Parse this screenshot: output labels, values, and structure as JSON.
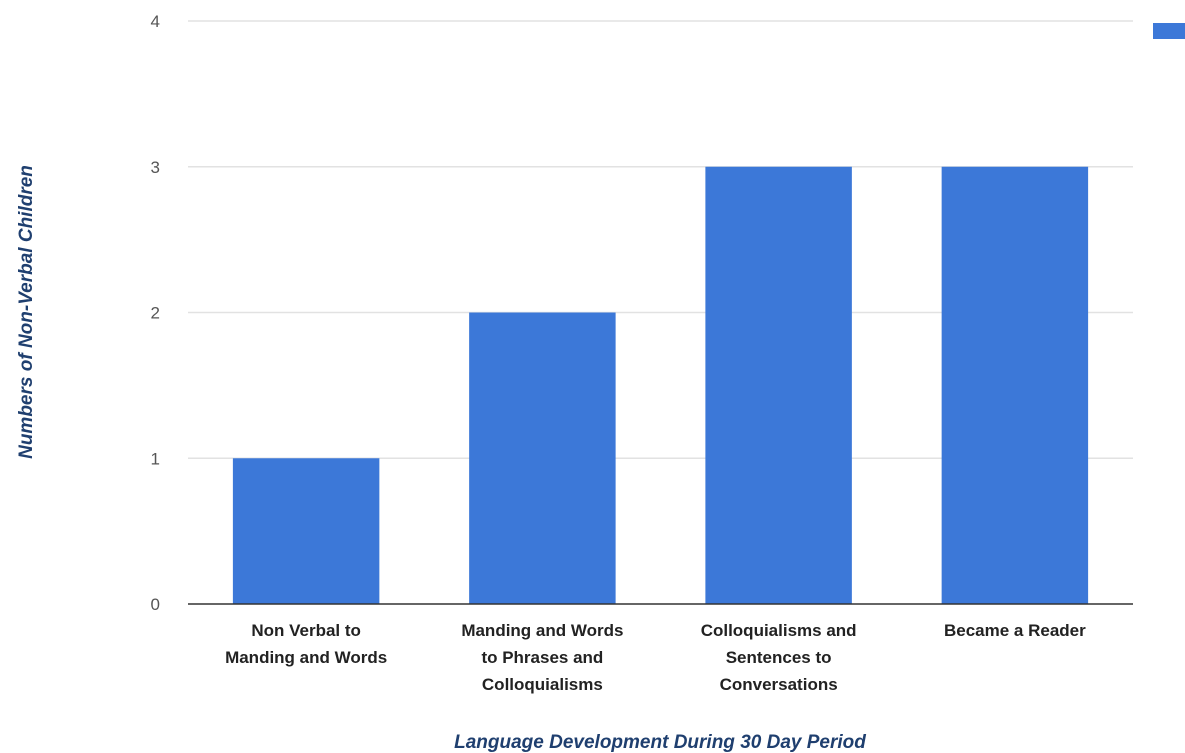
{
  "chart_data": {
    "type": "bar",
    "categories": [
      [
        "Non Verbal to",
        "Manding and Words"
      ],
      [
        "Manding and Words",
        "to Phrases and",
        "Colloquialisms"
      ],
      [
        "Colloquialisms and",
        "Sentences to",
        "Conversations"
      ],
      [
        "Became a Reader"
      ]
    ],
    "series": [
      {
        "values": [
          1,
          2,
          3,
          3
        ],
        "color": "#3c78d8"
      }
    ],
    "xlabel": "Language Development During 30 Day Period",
    "ylabel": "Numbers of Non-Verbal Children",
    "ylim": [
      0,
      4
    ],
    "yticks": [
      0,
      1,
      2,
      3,
      4
    ],
    "grid": true,
    "legend": {
      "placement": "top-right",
      "entries": [
        {
          "color": "#3c78d8"
        }
      ]
    },
    "colors": {
      "bar": "#3c78d8",
      "grid": "#e2e2e2",
      "baseline": "#333333"
    }
  }
}
